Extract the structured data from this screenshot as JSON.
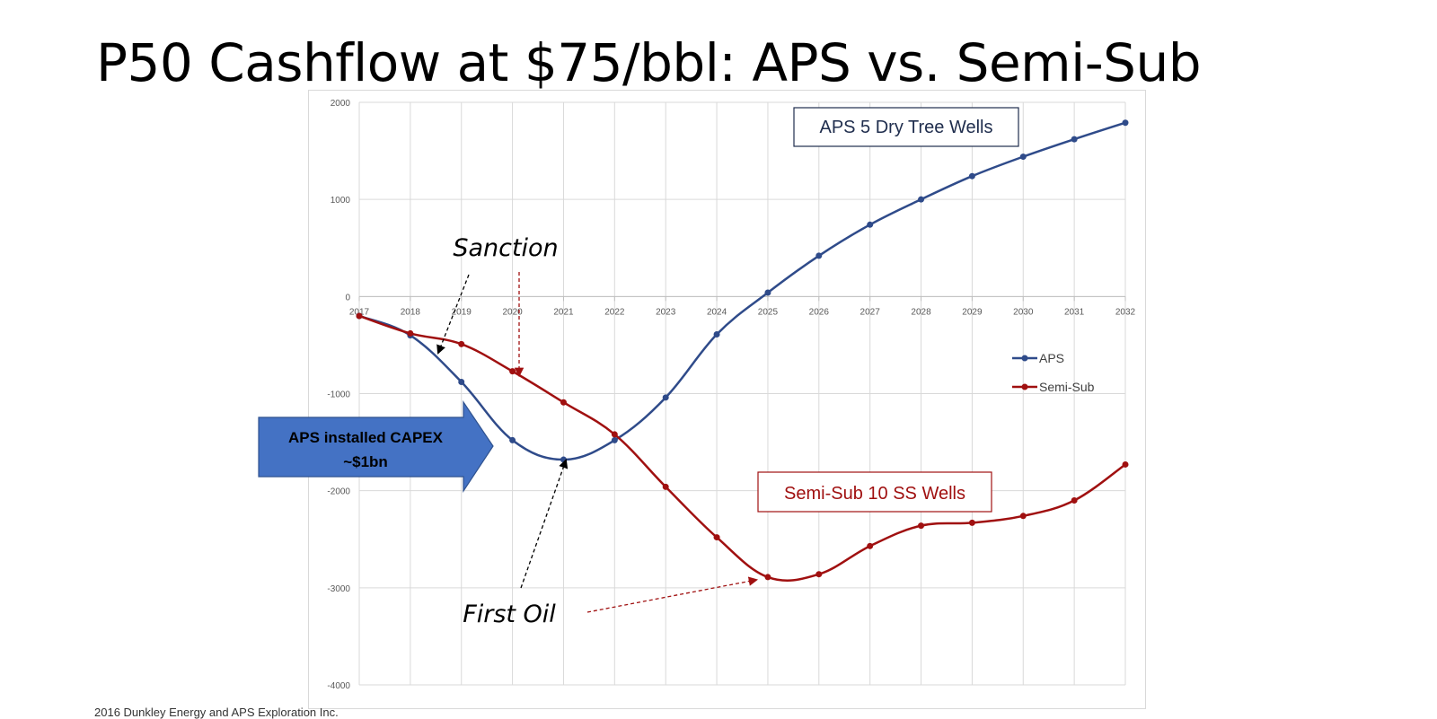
{
  "slide": {
    "title": "P50 Cashflow at $75/bbl: APS vs. Semi-Sub",
    "footer": "2016 Dunkley Energy and APS Exploration Inc."
  },
  "chart_data": {
    "type": "line",
    "title": "",
    "xlabel": "",
    "ylabel": "",
    "x": [
      2017,
      2018,
      2019,
      2020,
      2021,
      2022,
      2023,
      2024,
      2025,
      2026,
      2027,
      2028,
      2029,
      2030,
      2031,
      2032
    ],
    "ylim": [
      -4000,
      2000
    ],
    "yticks": [
      2000,
      1000,
      0,
      -1000,
      -2000,
      -3000,
      -4000
    ],
    "grid": true,
    "legend_position": "right",
    "series": [
      {
        "name": "APS",
        "color": "#2f4b8a",
        "values": [
          -200,
          -400,
          -880,
          -1480,
          -1680,
          -1480,
          -1040,
          -390,
          40,
          420,
          740,
          1000,
          1240,
          1440,
          1620,
          1790
        ]
      },
      {
        "name": "Semi-Sub",
        "color": "#a01010",
        "values": [
          -200,
          -380,
          -490,
          -770,
          -1090,
          -1420,
          -1960,
          -2480,
          -2890,
          -2860,
          -2570,
          -2360,
          -2330,
          -2260,
          -2100,
          -1730
        ]
      }
    ],
    "annotations": {
      "aps_box": "APS 5 Dry Tree Wells",
      "semisub_box": "Semi-Sub 10 SS Wells",
      "sanction": "Sanction",
      "first_oil": "First Oil",
      "capex_arrow_line1": "APS installed CAPEX",
      "capex_arrow_line2": "~$1bn"
    },
    "colors": {
      "grid": "#d9d9d9",
      "axis_text": "#595959",
      "capex_fill": "#4472c4",
      "capex_stroke": "#2f528f"
    }
  }
}
